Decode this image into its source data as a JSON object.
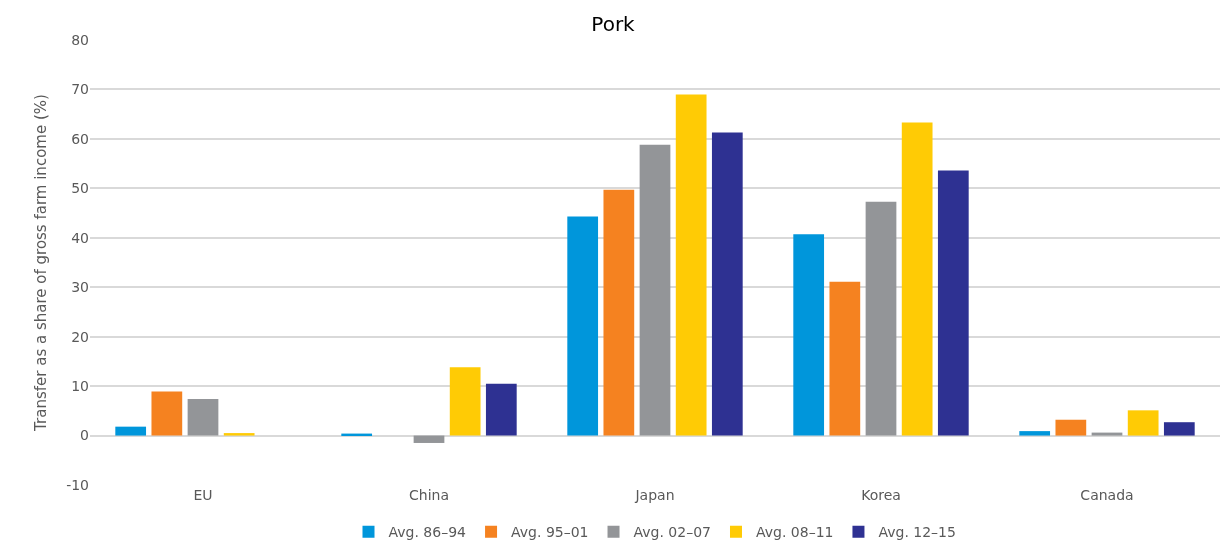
{
  "chart_data": {
    "type": "bar",
    "title": "Pork",
    "ylabel": "Transfer as a share of gross farm income (%)",
    "categories": [
      "EU",
      "China",
      "Japan",
      "Korea",
      "Canada"
    ],
    "series": [
      {
        "name": "Avg. 86–94",
        "color": "#0096db",
        "values": [
          1.8,
          0.4,
          44.3,
          40.7,
          0.9
        ]
      },
      {
        "name": "Avg. 95–01",
        "color": "#f58220",
        "values": [
          8.9,
          0,
          49.7,
          31.1,
          3.2
        ]
      },
      {
        "name": "Avg. 02–07",
        "color": "#939598",
        "values": [
          7.4,
          -1.5,
          58.8,
          47.3,
          0.6
        ]
      },
      {
        "name": "Avg. 08–11",
        "color": "#ffcb05",
        "values": [
          0.5,
          13.8,
          69,
          63.3,
          5.1
        ]
      },
      {
        "name": "Avg. 12–15",
        "color": "#2e3192",
        "values": [
          0,
          10.5,
          61.3,
          53.6,
          2.7
        ]
      }
    ],
    "ylim": [
      -10,
      80
    ],
    "yticks": [
      -10,
      0,
      10,
      20,
      30,
      40,
      50,
      60,
      70,
      80
    ],
    "grid": "y",
    "legend": "bottom"
  }
}
